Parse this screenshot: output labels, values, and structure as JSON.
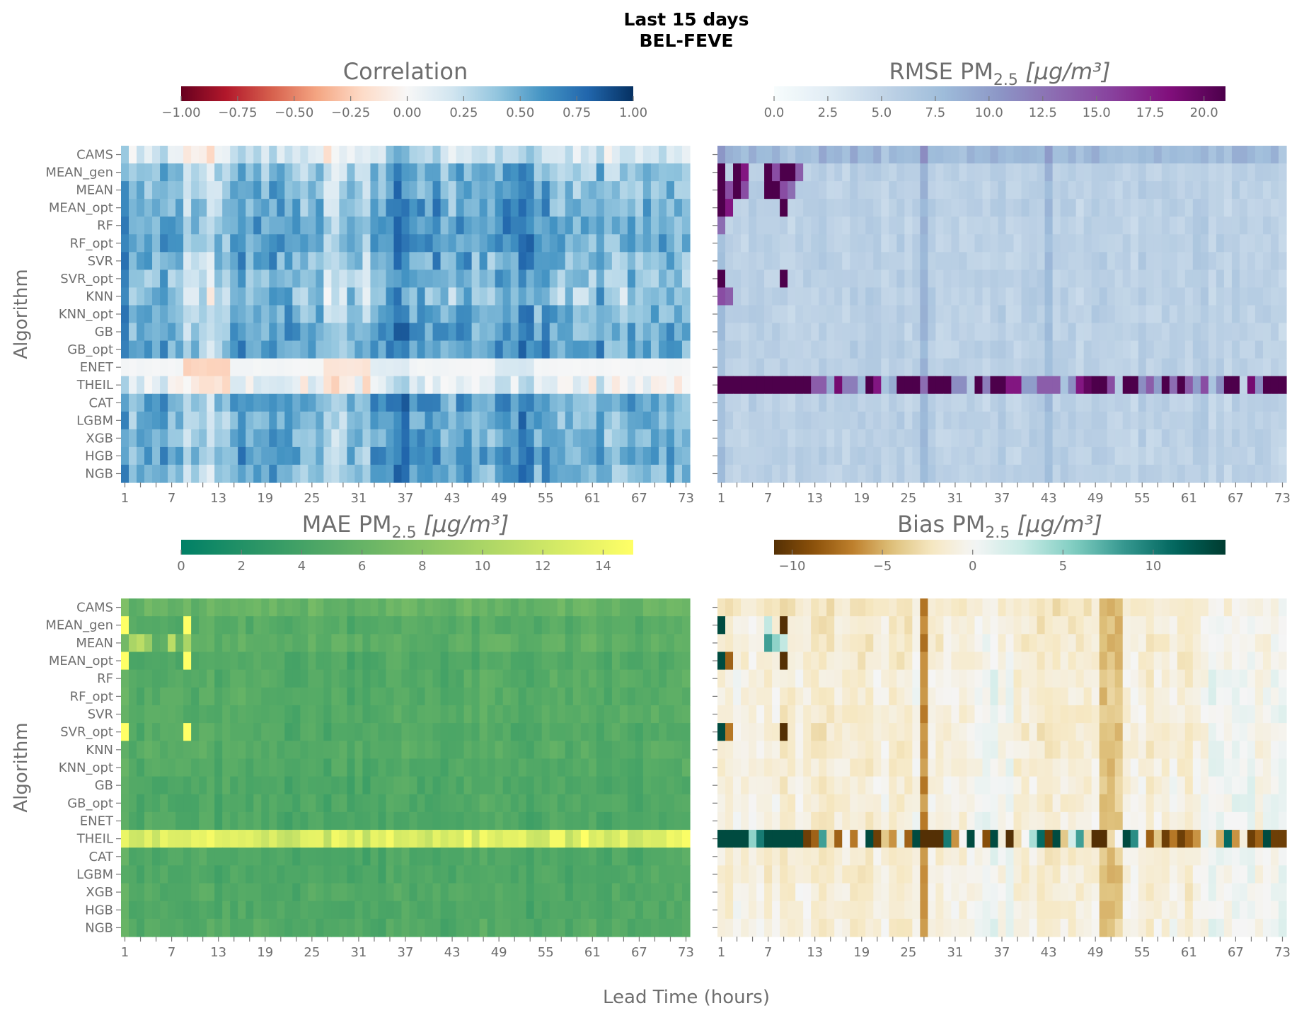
{
  "figure": {
    "title_line1": "Last 15 days",
    "title_line2": "BEL-FEVE",
    "ylabel": "Algorithm",
    "xlabel": "Lead Time (hours)"
  },
  "chart_data": [
    {
      "type": "heatmap",
      "panel": "top-left",
      "title": "Correlation",
      "title_sub": "",
      "title_unit": "",
      "colormap": "RdBu",
      "vmin": -1.0,
      "vmax": 1.0,
      "vcenter": 0,
      "colorbar_ticks": [
        "−1.00",
        "−0.75",
        "−0.50",
        "−0.25",
        "0.00",
        "0.25",
        "0.50",
        "0.75",
        "1.00"
      ],
      "colorbar_tick_values": [
        -1,
        -0.75,
        -0.5,
        -0.25,
        0,
        0.25,
        0.5,
        0.75,
        1
      ],
      "rows": [
        "CAMS",
        "MEAN_gen",
        "MEAN",
        "MEAN_opt",
        "RF",
        "RF_opt",
        "SVR",
        "SVR_opt",
        "KNN",
        "KNN_opt",
        "GB",
        "GB_opt",
        "ENET",
        "THEIL",
        "CAT",
        "LGBM",
        "XGB",
        "HGB",
        "NGB"
      ],
      "x_tick_labels": [
        "1",
        "7",
        "13",
        "19",
        "25",
        "31",
        "37",
        "43",
        "49",
        "55",
        "61",
        "67",
        "73"
      ],
      "n_cols": 73,
      "row_typical": [
        0.2,
        0.45,
        0.45,
        0.5,
        0.55,
        0.55,
        0.5,
        0.45,
        0.4,
        0.5,
        0.55,
        0.55,
        0.02,
        0.1,
        0.55,
        0.5,
        0.5,
        0.55,
        0.5
      ],
      "row_spread": [
        0.22,
        0.25,
        0.25,
        0.25,
        0.22,
        0.22,
        0.25,
        0.25,
        0.3,
        0.25,
        0.22,
        0.22,
        0.02,
        0.25,
        0.22,
        0.22,
        0.22,
        0.22,
        0.22
      ],
      "column_shift": [
        {
          "from": 9,
          "to": 14,
          "delta": -0.25
        },
        {
          "from": 27,
          "to": 32,
          "delta": -0.15
        },
        {
          "from": 33,
          "to": 37,
          "delta": 0.1
        },
        {
          "from": 49,
          "to": 53,
          "delta": 0.15
        }
      ],
      "overrides": [],
      "explicit_rows": {}
    },
    {
      "type": "heatmap",
      "panel": "top-right",
      "title": "RMSE PM",
      "title_sub": "2.5",
      "title_unit": " [μg/m³]",
      "colormap": "BuPu",
      "vmin": 0,
      "vmax": 21,
      "colorbar_ticks": [
        "0.0",
        "2.5",
        "5.0",
        "7.5",
        "10.0",
        "12.5",
        "15.0",
        "17.5",
        "20.0"
      ],
      "colorbar_tick_values": [
        0,
        2.5,
        5,
        7.5,
        10,
        12.5,
        15,
        17.5,
        20
      ],
      "rows": [
        "CAMS",
        "MEAN_gen",
        "MEAN",
        "MEAN_opt",
        "RF",
        "RF_opt",
        "SVR",
        "SVR_opt",
        "KNN",
        "KNN_opt",
        "GB",
        "GB_opt",
        "ENET",
        "THEIL",
        "CAT",
        "LGBM",
        "XGB",
        "HGB",
        "NGB"
      ],
      "x_tick_labels": [
        "1",
        "7",
        "13",
        "19",
        "25",
        "31",
        "37",
        "43",
        "49",
        "55",
        "61",
        "67",
        "73"
      ],
      "n_cols": 73,
      "row_typical": [
        8,
        5.5,
        5.5,
        5.5,
        5.5,
        5.5,
        5.5,
        5.5,
        5.5,
        5.5,
        5.5,
        5.5,
        5.5,
        14,
        5.5,
        5.5,
        5.5,
        5.5,
        5.5
      ],
      "row_spread": [
        1.5,
        1.2,
        1.2,
        1.2,
        1.2,
        1.2,
        1.2,
        1.2,
        1.2,
        1.2,
        1.2,
        1.2,
        1.2,
        3,
        1.2,
        1.2,
        1.2,
        1.2,
        1.2
      ],
      "column_shift": [
        {
          "from": 27,
          "to": 27,
          "delta": 3
        },
        {
          "from": 43,
          "to": 43,
          "delta": 3
        },
        {
          "from": 1,
          "to": 1,
          "delta": 2
        }
      ],
      "overrides": [
        {
          "row": "MEAN_gen",
          "col": 1,
          "value": 21
        },
        {
          "row": "MEAN_gen",
          "col": 3,
          "value": 21
        },
        {
          "row": "MEAN_gen",
          "col": 4,
          "value": 18
        },
        {
          "row": "MEAN_gen",
          "col": 7,
          "value": 21
        },
        {
          "row": "MEAN_gen",
          "col": 8,
          "value": 15
        },
        {
          "row": "MEAN_gen",
          "col": 9,
          "value": 21
        },
        {
          "row": "MEAN_gen",
          "col": 10,
          "value": 21
        },
        {
          "row": "MEAN_gen",
          "col": 11,
          "value": 14
        },
        {
          "row": "MEAN",
          "col": 1,
          "value": 21
        },
        {
          "row": "MEAN",
          "col": 2,
          "value": 15
        },
        {
          "row": "MEAN",
          "col": 3,
          "value": 21
        },
        {
          "row": "MEAN",
          "col": 4,
          "value": 15
        },
        {
          "row": "MEAN",
          "col": 7,
          "value": 21
        },
        {
          "row": "MEAN",
          "col": 8,
          "value": 21
        },
        {
          "row": "MEAN",
          "col": 9,
          "value": 15
        },
        {
          "row": "MEAN",
          "col": 10,
          "value": 13
        },
        {
          "row": "MEAN_opt",
          "col": 1,
          "value": 21
        },
        {
          "row": "MEAN_opt",
          "col": 2,
          "value": 18
        },
        {
          "row": "MEAN_opt",
          "col": 9,
          "value": 21
        },
        {
          "row": "RF",
          "col": 1,
          "value": 13
        },
        {
          "row": "SVR_opt",
          "col": 1,
          "value": 21
        },
        {
          "row": "SVR_opt",
          "col": 9,
          "value": 21
        },
        {
          "row": "KNN",
          "col": 1,
          "value": 15
        },
        {
          "row": "KNN",
          "col": 2,
          "value": 14
        }
      ],
      "explicit_rows": {
        "THEIL": [
          21,
          21,
          21,
          21,
          21,
          21,
          21,
          21,
          21,
          21,
          21,
          21,
          14,
          14,
          9,
          19,
          12,
          12,
          8,
          21,
          18,
          7,
          9,
          21,
          21,
          21,
          13,
          21,
          21,
          21,
          11,
          11,
          6,
          21,
          12,
          21,
          21,
          18,
          18,
          10,
          10,
          14,
          14,
          14,
          7,
          11,
          18,
          20,
          21,
          21,
          15,
          6,
          21,
          21,
          11,
          14,
          10,
          21,
          13,
          21,
          14,
          10,
          15,
          7,
          11,
          21,
          21,
          5,
          19,
          11,
          21,
          21,
          21
        ]
      }
    },
    {
      "type": "heatmap",
      "panel": "bottom-left",
      "title": "MAE PM",
      "title_sub": "2.5",
      "title_unit": " [μg/m³]",
      "colormap": "summer",
      "vmin": 0,
      "vmax": 15,
      "colorbar_ticks": [
        "0",
        "2",
        "4",
        "6",
        "8",
        "10",
        "12",
        "14"
      ],
      "colorbar_tick_values": [
        0,
        2,
        4,
        6,
        8,
        10,
        12,
        14
      ],
      "rows": [
        "CAMS",
        "MEAN_gen",
        "MEAN",
        "MEAN_opt",
        "RF",
        "RF_opt",
        "SVR",
        "SVR_opt",
        "KNN",
        "KNN_opt",
        "GB",
        "GB_opt",
        "ENET",
        "THEIL",
        "CAT",
        "LGBM",
        "XGB",
        "HGB",
        "NGB"
      ],
      "x_tick_labels": [
        "1",
        "7",
        "13",
        "19",
        "25",
        "31",
        "37",
        "43",
        "49",
        "55",
        "61",
        "67",
        "73"
      ],
      "n_cols": 73,
      "row_typical": [
        6,
        5,
        5.5,
        4.8,
        5,
        5,
        5,
        4.8,
        5,
        4.8,
        4.6,
        4.6,
        4.6,
        13,
        4.6,
        4.6,
        4.8,
        4.6,
        4.8
      ],
      "row_spread": [
        1.2,
        1,
        1,
        1,
        1,
        1,
        1,
        1,
        1,
        1,
        1,
        1,
        1,
        2.2,
        1,
        1,
        1,
        1,
        1
      ],
      "column_shift": [
        {
          "from": 1,
          "to": 1,
          "delta": 1.5
        }
      ],
      "overrides": [
        {
          "row": "MEAN_gen",
          "col": 1,
          "value": 15
        },
        {
          "row": "MEAN_gen",
          "col": 9,
          "value": 15
        },
        {
          "row": "MEAN",
          "col": 2,
          "value": 10
        },
        {
          "row": "MEAN",
          "col": 3,
          "value": 11
        },
        {
          "row": "MEAN",
          "col": 4,
          "value": 9
        },
        {
          "row": "MEAN",
          "col": 7,
          "value": 11
        },
        {
          "row": "MEAN",
          "col": 9,
          "value": 10
        },
        {
          "row": "MEAN_opt",
          "col": 1,
          "value": 15
        },
        {
          "row": "MEAN_opt",
          "col": 9,
          "value": 15
        },
        {
          "row": "SVR_opt",
          "col": 1,
          "value": 15
        },
        {
          "row": "SVR_opt",
          "col": 9,
          "value": 15
        }
      ],
      "explicit_rows": {}
    },
    {
      "type": "heatmap",
      "panel": "bottom-right",
      "title": "Bias PM",
      "title_sub": "2.5",
      "title_unit": " [μg/m³]",
      "colormap": "BrBG",
      "vmin": -11,
      "vmax": 14,
      "vcenter": 0,
      "colorbar_ticks": [
        "−10",
        "−5",
        "0",
        "5",
        "10"
      ],
      "colorbar_tick_values": [
        -10,
        -5,
        0,
        5,
        10
      ],
      "rows": [
        "CAMS",
        "MEAN_gen",
        "MEAN",
        "MEAN_opt",
        "RF",
        "RF_opt",
        "SVR",
        "SVR_opt",
        "KNN",
        "KNN_opt",
        "GB",
        "GB_opt",
        "ENET",
        "THEIL",
        "CAT",
        "LGBM",
        "XGB",
        "HGB",
        "NGB"
      ],
      "x_tick_labels": [
        "1",
        "7",
        "13",
        "19",
        "25",
        "31",
        "37",
        "43",
        "49",
        "55",
        "61",
        "67",
        "73"
      ],
      "n_cols": 73,
      "row_typical": [
        -2,
        -1.5,
        -1.5,
        -1.5,
        -1,
        -1,
        -1.2,
        -1.5,
        -1.2,
        -1.2,
        -1,
        -1,
        -1,
        0,
        -1.2,
        -1.2,
        -1.2,
        -1,
        -1
      ],
      "row_spread": [
        1.5,
        1.5,
        1.5,
        1.5,
        1.6,
        1.6,
        1.5,
        1.5,
        1.5,
        1.5,
        1.6,
        1.6,
        1.6,
        1,
        1.5,
        1.5,
        1.5,
        1.5,
        1.5
      ],
      "column_shift": [
        {
          "from": 27,
          "to": 27,
          "delta": -4.5
        },
        {
          "from": 50,
          "to": 52,
          "delta": -3
        },
        {
          "from": 33,
          "to": 38,
          "delta": 1.2
        },
        {
          "from": 64,
          "to": 73,
          "delta": 1.2
        }
      ],
      "overrides": [
        {
          "row": "MEAN_gen",
          "col": 1,
          "value": 13
        },
        {
          "row": "MEAN_gen",
          "col": 9,
          "value": -11
        },
        {
          "row": "MEAN_gen",
          "col": 7,
          "value": 3
        },
        {
          "row": "MEAN",
          "col": 7,
          "value": 8
        },
        {
          "row": "MEAN",
          "col": 8,
          "value": 5
        },
        {
          "row": "MEAN",
          "col": 9,
          "value": 3
        },
        {
          "row": "MEAN_opt",
          "col": 1,
          "value": 13
        },
        {
          "row": "MEAN_opt",
          "col": 2,
          "value": -8
        },
        {
          "row": "MEAN_opt",
          "col": 9,
          "value": -11
        },
        {
          "row": "SVR_opt",
          "col": 1,
          "value": 13
        },
        {
          "row": "SVR_opt",
          "col": 2,
          "value": -7
        },
        {
          "row": "SVR_opt",
          "col": 9,
          "value": -11
        }
      ],
      "explicit_rows": {
        "THEIL": [
          13,
          13,
          13,
          13,
          5,
          10,
          13,
          13,
          13,
          13,
          13,
          -10,
          -8,
          8,
          -3,
          -8,
          0,
          -7,
          0,
          13,
          -10,
          -4,
          -6,
          1,
          -8,
          13,
          -11,
          -11,
          -11,
          10,
          -6,
          0,
          13,
          0,
          -9,
          13,
          -1,
          -11,
          -3,
          0,
          4,
          11,
          -10,
          13,
          -4,
          2,
          8,
          -3,
          -11,
          -11,
          -3,
          0,
          13,
          9,
          0,
          -8,
          -4,
          -10,
          -7,
          -10,
          -8,
          -6,
          1,
          -1,
          -5,
          11,
          -6,
          -1,
          -10,
          -8,
          13,
          -10,
          -10
        ]
      }
    }
  ]
}
